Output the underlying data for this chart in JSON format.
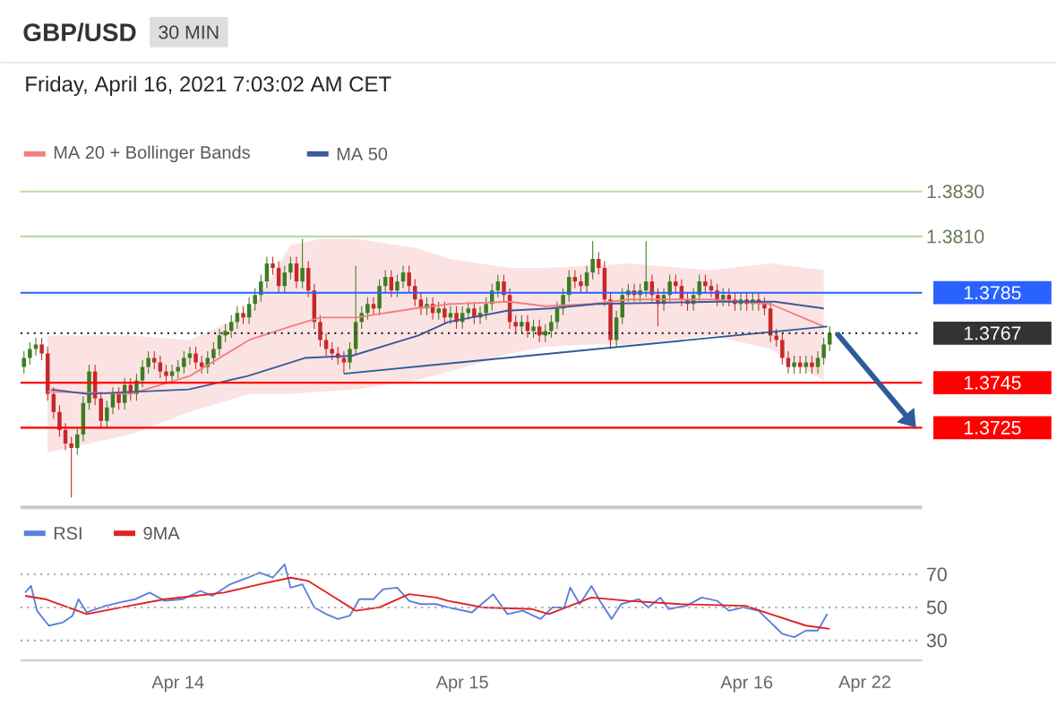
{
  "chart_data": [
    {
      "type": "candlestick",
      "title": "GBP/USD",
      "subtitle": "30 MIN",
      "annotations": [
        "Friday, April 16, 2021 7:03:02 AM CET"
      ],
      "x": [
        "2021-04-13T11:00",
        "2021-04-13T11:30",
        "2021-04-13T12:00",
        "2021-04-13T12:30",
        "2021-04-13T13:00",
        "2021-04-13T13:30",
        "2021-04-13T14:00",
        "2021-04-13T14:30",
        "2021-04-13T15:00",
        "2021-04-13T15:30",
        "2021-04-13T16:00",
        "2021-04-13T16:30",
        "2021-04-13T17:00",
        "2021-04-13T17:30",
        "2021-04-13T18:00",
        "2021-04-13T18:30",
        "2021-04-13T19:00",
        "2021-04-13T19:30",
        "2021-04-13T20:00",
        "2021-04-13T20:30",
        "2021-04-13T21:00",
        "2021-04-13T21:30",
        "2021-04-13T22:00",
        "2021-04-13T22:30",
        "2021-04-13T23:00",
        "2021-04-13T23:30",
        "2021-04-14T00:00",
        "2021-04-14T00:30",
        "2021-04-14T01:00",
        "2021-04-14T01:30",
        "2021-04-14T02:00",
        "2021-04-14T02:30",
        "2021-04-14T03:00",
        "2021-04-14T03:30",
        "2021-04-14T04:00",
        "2021-04-14T04:30",
        "2021-04-14T05:00",
        "2021-04-14T05:30",
        "2021-04-14T06:00",
        "2021-04-14T06:30",
        "2021-04-14T07:00",
        "2021-04-14T07:30",
        "2021-04-14T08:00",
        "2021-04-14T08:30",
        "2021-04-14T09:00",
        "2021-04-14T09:30",
        "2021-04-14T10:00",
        "2021-04-14T10:30",
        "2021-04-14T11:00",
        "2021-04-14T11:30",
        "2021-04-14T12:00",
        "2021-04-14T12:30",
        "2021-04-14T13:00",
        "2021-04-14T13:30",
        "2021-04-14T14:00",
        "2021-04-14T14:30",
        "2021-04-14T15:00",
        "2021-04-14T15:30",
        "2021-04-14T16:00",
        "2021-04-14T16:30",
        "2021-04-14T17:00",
        "2021-04-14T17:30",
        "2021-04-14T18:00",
        "2021-04-14T18:30",
        "2021-04-14T19:00",
        "2021-04-14T19:30",
        "2021-04-14T20:00",
        "2021-04-14T20:30",
        "2021-04-14T21:00",
        "2021-04-14T21:30",
        "2021-04-14T22:00",
        "2021-04-14T22:30",
        "2021-04-14T23:00",
        "2021-04-14T23:30",
        "2021-04-15T00:00",
        "2021-04-15T00:30",
        "2021-04-15T01:00",
        "2021-04-15T01:30",
        "2021-04-15T02:00",
        "2021-04-15T02:30",
        "2021-04-15T03:00",
        "2021-04-15T03:30",
        "2021-04-15T04:00",
        "2021-04-15T04:30",
        "2021-04-15T05:00",
        "2021-04-15T05:30",
        "2021-04-15T06:00",
        "2021-04-15T06:30",
        "2021-04-15T07:00",
        "2021-04-15T07:30",
        "2021-04-15T08:00",
        "2021-04-15T08:30",
        "2021-04-15T09:00",
        "2021-04-15T09:30",
        "2021-04-15T10:00",
        "2021-04-15T10:30",
        "2021-04-15T11:00",
        "2021-04-15T11:30",
        "2021-04-15T12:00",
        "2021-04-15T12:30",
        "2021-04-15T13:00",
        "2021-04-15T13:30",
        "2021-04-15T14:00",
        "2021-04-15T14:30",
        "2021-04-15T15:00",
        "2021-04-15T15:30",
        "2021-04-15T16:00",
        "2021-04-15T16:30",
        "2021-04-15T17:00",
        "2021-04-15T17:30",
        "2021-04-15T18:00",
        "2021-04-15T18:30",
        "2021-04-15T19:00",
        "2021-04-15T19:30",
        "2021-04-15T20:00",
        "2021-04-15T20:30",
        "2021-04-15T21:00",
        "2021-04-15T21:30",
        "2021-04-15T22:00",
        "2021-04-15T22:30",
        "2021-04-15T23:00",
        "2021-04-15T23:30",
        "2021-04-16T00:00",
        "2021-04-16T00:30",
        "2021-04-16T01:00",
        "2021-04-16T01:30",
        "2021-04-16T02:00",
        "2021-04-16T02:30",
        "2021-04-16T03:00",
        "2021-04-16T03:30",
        "2021-04-16T04:00",
        "2021-04-16T04:30",
        "2021-04-16T05:00",
        "2021-04-16T05:30",
        "2021-04-16T06:00",
        "2021-04-16T06:30",
        "2021-04-16T07:00"
      ],
      "ohlc": [
        [
          1.3752,
          1.3759,
          1.3749,
          1.3756
        ],
        [
          1.3756,
          1.3763,
          1.3753,
          1.376
        ],
        [
          1.376,
          1.3765,
          1.3757,
          1.3762
        ],
        [
          1.3762,
          1.3765,
          1.3755,
          1.3758
        ],
        [
          1.3758,
          1.3761,
          1.3737,
          1.374
        ],
        [
          1.374,
          1.3743,
          1.3729,
          1.3732
        ],
        [
          1.3732,
          1.3735,
          1.3721,
          1.3724
        ],
        [
          1.3724,
          1.3727,
          1.3715,
          1.3718
        ],
        [
          1.3718,
          1.3721,
          1.3694,
          1.3716
        ],
        [
          1.3716,
          1.3725,
          1.3713,
          1.3722
        ],
        [
          1.3722,
          1.3739,
          1.3719,
          1.3736
        ],
        [
          1.3736,
          1.3753,
          1.3733,
          1.375
        ],
        [
          1.375,
          1.3753,
          1.3735,
          1.3738
        ],
        [
          1.3738,
          1.3741,
          1.3725,
          1.3728
        ],
        [
          1.3728,
          1.3737,
          1.3725,
          1.3734
        ],
        [
          1.3734,
          1.3743,
          1.3731,
          1.374
        ],
        [
          1.374,
          1.3743,
          1.3733,
          1.3736
        ],
        [
          1.3736,
          1.3747,
          1.3733,
          1.3744
        ],
        [
          1.3744,
          1.3747,
          1.3737,
          1.374
        ],
        [
          1.374,
          1.3749,
          1.3737,
          1.3746
        ],
        [
          1.3746,
          1.3755,
          1.3743,
          1.3752
        ],
        [
          1.3752,
          1.3759,
          1.3749,
          1.3756
        ],
        [
          1.3756,
          1.3759,
          1.3751,
          1.3754
        ],
        [
          1.3754,
          1.3757,
          1.3747,
          1.375
        ],
        [
          1.375,
          1.3753,
          1.3745,
          1.3748
        ],
        [
          1.3748,
          1.3753,
          1.3745,
          1.375
        ],
        [
          1.375,
          1.3755,
          1.3747,
          1.3752
        ],
        [
          1.3752,
          1.3759,
          1.3749,
          1.3756
        ],
        [
          1.3756,
          1.3761,
          1.3753,
          1.3758
        ],
        [
          1.3758,
          1.3761,
          1.3751,
          1.3754
        ],
        [
          1.3754,
          1.3757,
          1.3749,
          1.3752
        ],
        [
          1.3752,
          1.3759,
          1.3749,
          1.3756
        ],
        [
          1.3756,
          1.3763,
          1.3753,
          1.376
        ],
        [
          1.376,
          1.3769,
          1.3757,
          1.3766
        ],
        [
          1.3766,
          1.3771,
          1.3763,
          1.3768
        ],
        [
          1.3768,
          1.3775,
          1.3765,
          1.3772
        ],
        [
          1.3772,
          1.3779,
          1.3769,
          1.3776
        ],
        [
          1.3776,
          1.3779,
          1.3771,
          1.3774
        ],
        [
          1.3774,
          1.3783,
          1.3771,
          1.378
        ],
        [
          1.378,
          1.3787,
          1.3777,
          1.3784
        ],
        [
          1.3784,
          1.3793,
          1.3781,
          1.379
        ],
        [
          1.379,
          1.3801,
          1.3787,
          1.3798
        ],
        [
          1.3798,
          1.3801,
          1.3793,
          1.3796
        ],
        [
          1.3796,
          1.3799,
          1.3785,
          1.3788
        ],
        [
          1.3788,
          1.3797,
          1.3785,
          1.3794
        ],
        [
          1.3794,
          1.3801,
          1.3791,
          1.3798
        ],
        [
          1.3798,
          1.3801,
          1.3787,
          1.379
        ],
        [
          1.379,
          1.3809,
          1.3787,
          1.3796
        ],
        [
          1.3796,
          1.3799,
          1.3783,
          1.3786
        ],
        [
          1.3786,
          1.3789,
          1.3769,
          1.3772
        ],
        [
          1.3772,
          1.3775,
          1.3761,
          1.3764
        ],
        [
          1.3764,
          1.3767,
          1.3757,
          1.376
        ],
        [
          1.376,
          1.3763,
          1.3755,
          1.3758
        ],
        [
          1.3758,
          1.3761,
          1.3753,
          1.3756
        ],
        [
          1.3756,
          1.3759,
          1.3749,
          1.3754
        ],
        [
          1.3754,
          1.3763,
          1.3751,
          1.376
        ],
        [
          1.376,
          1.3797,
          1.3757,
          1.3772
        ],
        [
          1.3772,
          1.3779,
          1.3769,
          1.3776
        ],
        [
          1.3776,
          1.3783,
          1.3773,
          1.378
        ],
        [
          1.378,
          1.3783,
          1.3775,
          1.3778
        ],
        [
          1.3778,
          1.3791,
          1.3775,
          1.3788
        ],
        [
          1.3788,
          1.3795,
          1.3785,
          1.3792
        ],
        [
          1.3792,
          1.3795,
          1.3783,
          1.3786
        ],
        [
          1.3786,
          1.3793,
          1.3783,
          1.379
        ],
        [
          1.379,
          1.3797,
          1.3787,
          1.3794
        ],
        [
          1.3794,
          1.3797,
          1.3785,
          1.3788
        ],
        [
          1.3788,
          1.3791,
          1.3779,
          1.3782
        ],
        [
          1.3782,
          1.3785,
          1.3775,
          1.3778
        ],
        [
          1.3778,
          1.3783,
          1.3775,
          1.378
        ],
        [
          1.378,
          1.3783,
          1.3773,
          1.3776
        ],
        [
          1.3776,
          1.3781,
          1.3773,
          1.3778
        ],
        [
          1.3778,
          1.3781,
          1.3771,
          1.3774
        ],
        [
          1.3774,
          1.3779,
          1.3771,
          1.3776
        ],
        [
          1.3776,
          1.3779,
          1.3769,
          1.3772
        ],
        [
          1.3772,
          1.3779,
          1.3769,
          1.3776
        ],
        [
          1.3776,
          1.3781,
          1.3773,
          1.3778
        ],
        [
          1.3778,
          1.3781,
          1.3771,
          1.3774
        ],
        [
          1.3774,
          1.3779,
          1.3771,
          1.3776
        ],
        [
          1.3776,
          1.3783,
          1.3773,
          1.378
        ],
        [
          1.378,
          1.3789,
          1.3777,
          1.3786
        ],
        [
          1.3786,
          1.3793,
          1.3783,
          1.379
        ],
        [
          1.379,
          1.3793,
          1.3781,
          1.3784
        ],
        [
          1.3784,
          1.3787,
          1.3769,
          1.3772
        ],
        [
          1.3772,
          1.3775,
          1.3767,
          1.377
        ],
        [
          1.377,
          1.3775,
          1.3767,
          1.3772
        ],
        [
          1.3772,
          1.3775,
          1.3765,
          1.3768
        ],
        [
          1.3768,
          1.3773,
          1.3765,
          1.377
        ],
        [
          1.377,
          1.3773,
          1.3763,
          1.3766
        ],
        [
          1.3766,
          1.3771,
          1.3763,
          1.3768
        ],
        [
          1.3768,
          1.3775,
          1.3765,
          1.3772
        ],
        [
          1.3772,
          1.3781,
          1.3769,
          1.3778
        ],
        [
          1.3778,
          1.3787,
          1.3775,
          1.3784
        ],
        [
          1.3784,
          1.3795,
          1.3781,
          1.3792
        ],
        [
          1.3792,
          1.3795,
          1.3787,
          1.379
        ],
        [
          1.379,
          1.3793,
          1.3785,
          1.3788
        ],
        [
          1.3788,
          1.3797,
          1.3785,
          1.3794
        ],
        [
          1.3794,
          1.3808,
          1.3791,
          1.38
        ],
        [
          1.38,
          1.3803,
          1.3793,
          1.3796
        ],
        [
          1.3796,
          1.3799,
          1.3779,
          1.3782
        ],
        [
          1.3782,
          1.3785,
          1.376,
          1.3764
        ],
        [
          1.3764,
          1.3777,
          1.3761,
          1.3774
        ],
        [
          1.3774,
          1.3787,
          1.3771,
          1.3784
        ],
        [
          1.3784,
          1.3789,
          1.3781,
          1.3786
        ],
        [
          1.3786,
          1.3789,
          1.3781,
          1.3784
        ],
        [
          1.3784,
          1.3789,
          1.3781,
          1.3786
        ],
        [
          1.3786,
          1.3808,
          1.3783,
          1.379
        ],
        [
          1.379,
          1.3793,
          1.3781,
          1.3784
        ],
        [
          1.3784,
          1.3787,
          1.377,
          1.378
        ],
        [
          1.378,
          1.3787,
          1.3777,
          1.3784
        ],
        [
          1.3784,
          1.3793,
          1.3781,
          1.379
        ],
        [
          1.379,
          1.3793,
          1.3785,
          1.3788
        ],
        [
          1.3788,
          1.3791,
          1.3779,
          1.3782
        ],
        [
          1.3782,
          1.3785,
          1.3777,
          1.378
        ],
        [
          1.378,
          1.3787,
          1.3777,
          1.3784
        ],
        [
          1.3784,
          1.3793,
          1.3781,
          1.379
        ],
        [
          1.379,
          1.3793,
          1.3785,
          1.3788
        ],
        [
          1.3788,
          1.3791,
          1.3783,
          1.3786
        ],
        [
          1.3786,
          1.3789,
          1.3779,
          1.3782
        ],
        [
          1.3782,
          1.3787,
          1.3779,
          1.3784
        ],
        [
          1.3784,
          1.3787,
          1.3779,
          1.3782
        ],
        [
          1.3782,
          1.3785,
          1.3777,
          1.378
        ],
        [
          1.378,
          1.3785,
          1.3777,
          1.3782
        ],
        [
          1.3782,
          1.3785,
          1.3777,
          1.378
        ],
        [
          1.378,
          1.3785,
          1.3777,
          1.3782
        ],
        [
          1.3782,
          1.3785,
          1.3777,
          1.378
        ],
        [
          1.378,
          1.3783,
          1.3775,
          1.3778
        ],
        [
          1.3778,
          1.3781,
          1.3763,
          1.3766
        ],
        [
          1.3766,
          1.3769,
          1.3761,
          1.3764
        ],
        [
          1.3764,
          1.3767,
          1.3753,
          1.3756
        ],
        [
          1.3756,
          1.3759,
          1.3749,
          1.3752
        ],
        [
          1.3752,
          1.3757,
          1.3749,
          1.3754
        ],
        [
          1.3754,
          1.3757,
          1.3749,
          1.3752
        ],
        [
          1.3752,
          1.3757,
          1.3749,
          1.3754
        ],
        [
          1.3754,
          1.3757,
          1.3749,
          1.3752
        ],
        [
          1.3752,
          1.3759,
          1.3749,
          1.3756
        ],
        [
          1.3756,
          1.3765,
          1.3753,
          1.3762
        ],
        [
          1.3762,
          1.377,
          1.3759,
          1.3767
        ]
      ],
      "series": [
        {
          "name": "MA 20 + Bollinger Bands",
          "type": "line",
          "color": "#f08080",
          "x": [
            "2021-04-13T13:00",
            "2021-04-13T20:00",
            "2021-04-14T01:00",
            "2021-04-14T06:00",
            "2021-04-14T09:30",
            "2021-04-14T12:00",
            "2021-04-14T15:00",
            "2021-04-14T20:00",
            "2021-04-14T23:00",
            "2021-04-15T04:00",
            "2021-04-15T07:00",
            "2021-04-15T11:00",
            "2021-04-15T14:00",
            "2021-04-15T21:00",
            "2021-04-16T02:00",
            "2021-04-16T06:30"
          ],
          "values": [
            1.3741,
            1.374,
            1.3748,
            1.3764,
            1.377,
            1.3774,
            1.3774,
            1.3778,
            1.378,
            1.3781,
            1.3779,
            1.378,
            1.3782,
            1.3782,
            1.378,
            1.377
          ],
          "lower": [
            1.3714,
            1.3722,
            1.3732,
            1.374,
            1.374,
            1.3741,
            1.3742,
            1.3746,
            1.375,
            1.3758,
            1.3761,
            1.3762,
            1.3762,
            1.3766,
            1.376,
            1.3746
          ],
          "upper": [
            1.3766,
            1.3766,
            1.3764,
            1.3776,
            1.3806,
            1.3809,
            1.3809,
            1.3805,
            1.38,
            1.3796,
            1.3796,
            1.3797,
            1.3798,
            1.3795,
            1.3798,
            1.3795
          ]
        },
        {
          "name": "MA 50",
          "type": "line",
          "color": "#3c5a99",
          "x": [
            "2021-04-13T13:18",
            "2021-04-13T16:18",
            "2021-04-14T00:54",
            "2021-04-14T05:54",
            "2021-04-14T09:30",
            "2021-04-14T10:42",
            "2021-04-14T14:42",
            "2021-04-14T20:18",
            "2021-04-14T22:48",
            "2021-04-15T03:48",
            "2021-04-15T07:24",
            "2021-04-15T11:18",
            "2021-04-15T21:24",
            "2021-04-16T02:24",
            "2021-04-16T06:30"
          ],
          "values": [
            1.3742,
            1.374,
            1.3742,
            1.3748,
            1.3754,
            1.3756,
            1.3757,
            1.3766,
            1.3772,
            1.3777,
            1.3778,
            1.378,
            1.3781,
            1.3781,
            1.3778
          ]
        },
        {
          "type": "line",
          "color": "#2e5c9a",
          "x": [
            "2021-04-14T14:00",
            "2021-04-16T06:48"
          ],
          "values": [
            1.3749,
            1.377
          ]
        }
      ],
      "xlim": [
        "2021-04-13T10:42",
        "2021-04-16T14:48"
      ],
      "ylim": [
        1.369,
        1.383
      ],
      "tick_labels": false,
      "legend": "top left",
      "ref_lines": [
        {
          "axis": "y",
          "value": 1.383,
          "label": "1.3830",
          "color": "#b8dc9c",
          "line_style": "solid"
        },
        {
          "axis": "y",
          "value": 1.381,
          "label": "1.3810",
          "color": "#b8dc9c",
          "line_style": "solid"
        },
        {
          "axis": "y",
          "value": 1.3785,
          "label": "1.3785",
          "color": "#2962ff",
          "line_style": "solid"
        },
        {
          "axis": "y",
          "value": 1.3767,
          "label": "1.3767",
          "color": "#333333",
          "line_style": "dotted"
        },
        {
          "axis": "y",
          "value": 1.3745,
          "label": "1.3745",
          "color": "#ff0000",
          "line_style": "solid"
        },
        {
          "axis": "y",
          "value": 1.3725,
          "label": "1.3725",
          "color": "#ff0000",
          "line_style": "solid"
        }
      ]
    },
    {
      "type": "line",
      "series": [
        {
          "name": "RSI",
          "color": "#5b7fdb",
          "x": [
            "2021-04-13T11:06",
            "2021-04-13T11:36",
            "2021-04-13T12:06",
            "2021-04-13T13:06",
            "2021-04-13T14:18",
            "2021-04-13T15:06",
            "2021-04-13T15:36",
            "2021-04-13T16:18",
            "2021-04-13T17:54",
            "2021-04-13T19:06",
            "2021-04-13T20:24",
            "2021-04-13T21:36",
            "2021-04-13T22:54",
            "2021-04-14T00:24",
            "2021-04-14T01:54",
            "2021-04-14T02:54",
            "2021-04-14T04:24",
            "2021-04-14T05:54",
            "2021-04-14T06:54",
            "2021-04-14T08:00",
            "2021-04-14T09:00",
            "2021-04-14T09:30",
            "2021-04-14T10:30",
            "2021-04-14T11:30",
            "2021-04-14T12:30",
            "2021-04-14T13:30",
            "2021-04-14T14:30",
            "2021-04-14T15:18",
            "2021-04-14T16:30",
            "2021-04-14T17:18",
            "2021-04-14T18:30",
            "2021-04-14T19:30",
            "2021-04-14T20:30",
            "2021-04-14T21:48",
            "2021-04-14T22:48",
            "2021-04-15T00:48",
            "2021-04-15T02:36",
            "2021-04-15T03:48",
            "2021-04-15T05:06",
            "2021-04-15T06:36",
            "2021-04-15T07:36",
            "2021-04-15T08:36",
            "2021-04-15T09:06",
            "2021-04-15T09:54",
            "2021-04-15T10:54",
            "2021-04-15T11:36",
            "2021-04-15T12:36",
            "2021-04-15T13:24",
            "2021-04-15T14:54",
            "2021-04-15T15:42",
            "2021-04-15T16:42",
            "2021-04-15T17:24",
            "2021-04-15T18:54",
            "2021-04-15T20:12",
            "2021-04-15T21:30",
            "2021-04-15T22:30",
            "2021-04-15T23:42",
            "2021-04-16T01:00",
            "2021-04-16T02:00",
            "2021-04-16T03:00",
            "2021-04-16T04:00",
            "2021-04-16T05:00",
            "2021-04-16T06:00",
            "2021-04-16T06:48"
          ],
          "values": [
            59,
            63,
            48,
            39,
            41,
            45,
            55,
            47,
            51,
            53,
            55,
            59,
            54,
            55,
            60,
            57,
            64,
            68,
            71,
            68,
            76,
            62,
            64,
            50,
            46,
            43,
            45,
            55,
            55,
            61,
            62,
            54,
            52,
            52,
            50,
            47,
            58,
            46,
            48,
            43,
            50,
            50,
            62,
            52,
            63,
            54,
            43,
            52,
            55,
            50,
            56,
            49,
            51,
            56,
            54,
            48,
            50,
            48,
            41,
            34,
            32,
            36,
            36,
            46
          ]
        },
        {
          "name": "9MA",
          "color": "#e02020",
          "x": [
            "2021-04-13T11:06",
            "2021-04-13T12:48",
            "2021-04-13T16:18",
            "2021-04-13T19:54",
            "2021-04-13T22:54",
            "2021-04-14T03:54",
            "2021-04-14T06:54",
            "2021-04-14T09:30",
            "2021-04-14T11:00",
            "2021-04-14T13:00",
            "2021-04-14T15:00",
            "2021-04-14T17:00",
            "2021-04-14T19:30",
            "2021-04-14T21:48",
            "2021-04-14T22:48",
            "2021-04-15T01:42",
            "2021-04-15T05:54",
            "2021-04-15T07:18",
            "2021-04-15T10:54",
            "2021-04-15T14:00",
            "2021-04-15T18:24",
            "2021-04-15T23:54",
            "2021-04-16T02:00",
            "2021-04-16T05:00",
            "2021-04-16T07:00"
          ],
          "values": [
            57,
            55,
            46,
            51,
            55,
            59,
            64,
            68,
            66,
            57,
            48,
            50,
            58,
            56,
            54,
            50,
            49,
            46,
            56,
            54,
            52,
            51,
            46,
            39,
            37
          ]
        }
      ],
      "xlim": [
        "2021-04-13T10:42",
        "2021-04-16T14:48"
      ],
      "xticks": [
        {
          "value": "2021-04-14",
          "label": "Apr 14"
        },
        {
          "value": "2021-04-15",
          "label": "Apr 15"
        },
        {
          "value": "2021-04-16",
          "label": "Apr 16"
        }
      ],
      "annotations": [
        "Apr 22"
      ],
      "ylim": [
        18,
        110
      ],
      "tick_labels": "x",
      "legend": "top left",
      "ref_lines": [
        {
          "axis": "y",
          "value": 70,
          "label": "70",
          "color": "#aaaaaa",
          "line_style": "dotted"
        },
        {
          "axis": "y",
          "value": 50,
          "label": "50",
          "color": "#aaaaaa",
          "line_style": "dotted"
        },
        {
          "axis": "y",
          "value": 30,
          "label": "30",
          "color": "#aaaaaa",
          "line_style": "dotted"
        }
      ]
    }
  ]
}
